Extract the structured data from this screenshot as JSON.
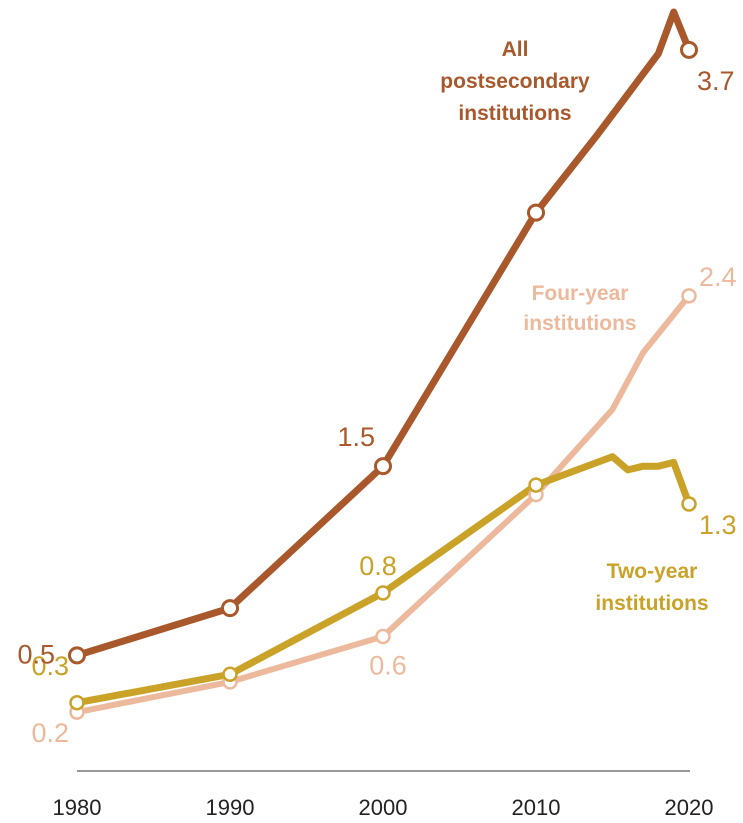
{
  "chart_data": {
    "type": "line",
    "title": "",
    "xlabel": "",
    "ylabel": "",
    "xlim": [
      1980,
      2020
    ],
    "ylim": [
      0,
      3.9
    ],
    "x_ticks": [
      "1980",
      "1990",
      "2000",
      "2010",
      "2020"
    ],
    "grid": false,
    "legend": "none",
    "series": [
      {
        "key": "all",
        "name_lines": [
          "All",
          "postsecondary",
          "institutions"
        ],
        "color": "#A8582B",
        "points": [
          [
            1980,
            0.5
          ],
          [
            1990,
            0.75
          ],
          [
            2000,
            1.5
          ],
          [
            2010,
            2.84
          ],
          [
            2014,
            3.25
          ],
          [
            2018,
            3.68
          ],
          [
            2019,
            3.9
          ],
          [
            2020,
            3.7
          ]
        ],
        "markers": [
          [
            1980,
            0.5
          ],
          [
            1990,
            0.75
          ],
          [
            2000,
            1.5
          ],
          [
            2010,
            2.84
          ],
          [
            2020,
            3.7
          ]
        ],
        "data_labels": [
          {
            "x": 1980,
            "y": 0.5,
            "text": "0.5"
          },
          {
            "x": 2000,
            "y": 1.5,
            "text": "1.5"
          },
          {
            "x": 2020,
            "y": 3.7,
            "text": "3.7"
          }
        ]
      },
      {
        "key": "four",
        "name_lines": [
          "Four-year",
          "institutions"
        ],
        "color": "#EDB99C",
        "points": [
          [
            1980,
            0.2
          ],
          [
            1990,
            0.36
          ],
          [
            2000,
            0.6
          ],
          [
            2010,
            1.35
          ],
          [
            2015,
            1.8
          ],
          [
            2017,
            2.1
          ],
          [
            2020,
            2.4
          ]
        ],
        "markers": [
          [
            1980,
            0.2
          ],
          [
            1990,
            0.36
          ],
          [
            2000,
            0.6
          ],
          [
            2010,
            1.35
          ],
          [
            2020,
            2.4
          ]
        ],
        "data_labels": [
          {
            "x": 1980,
            "y": 0.2,
            "text": "0.2"
          },
          {
            "x": 2000,
            "y": 0.6,
            "text": "0.6"
          },
          {
            "x": 2020,
            "y": 2.4,
            "text": "2.4"
          }
        ]
      },
      {
        "key": "two",
        "name_lines": [
          "Two-year",
          "institutions"
        ],
        "color": "#C9A227",
        "points": [
          [
            1980,
            0.25
          ],
          [
            1990,
            0.4
          ],
          [
            2000,
            0.83
          ],
          [
            2010,
            1.4
          ],
          [
            2014,
            1.52
          ],
          [
            2015,
            1.55
          ],
          [
            2016,
            1.48
          ],
          [
            2017,
            1.5
          ],
          [
            2018,
            1.5
          ],
          [
            2019,
            1.52
          ],
          [
            2020,
            1.3
          ]
        ],
        "markers": [
          [
            1980,
            0.25
          ],
          [
            1990,
            0.4
          ],
          [
            2000,
            0.83
          ],
          [
            2010,
            1.4
          ],
          [
            2020,
            1.3
          ]
        ],
        "data_labels": [
          {
            "x": 1980,
            "y": 0.3,
            "text": "0.3"
          },
          {
            "x": 2000,
            "y": 0.83,
            "text": "0.8"
          },
          {
            "x": 2020,
            "y": 1.3,
            "text": "1.3"
          }
        ]
      }
    ]
  }
}
